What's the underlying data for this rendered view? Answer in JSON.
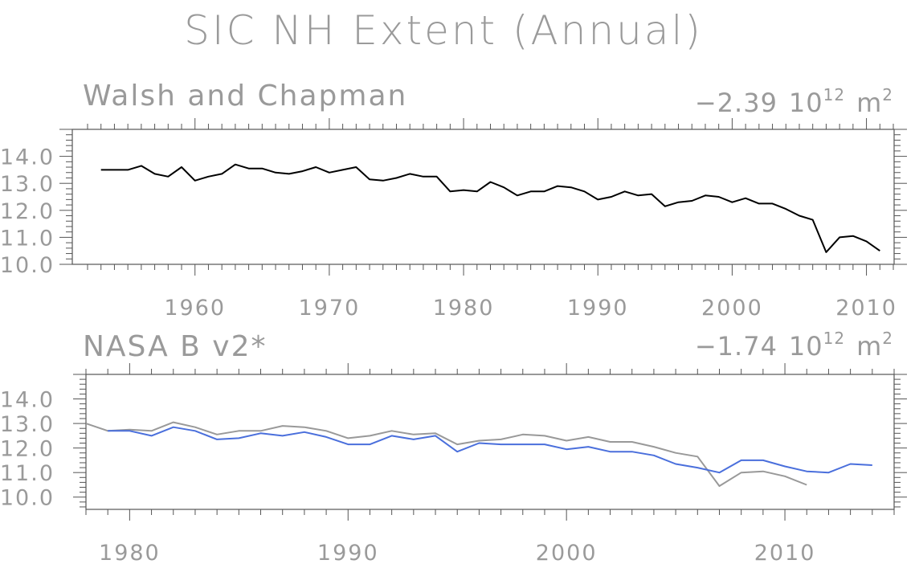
{
  "title": "SIC NH Extent (Annual)",
  "chart_data": [
    {
      "type": "line",
      "title": "Walsh and Chapman",
      "trend": {
        "value": "−2.39",
        "base": "10",
        "exponent": "12",
        "unit": "m",
        "unit_exponent": "2"
      },
      "xlim": [
        1952,
        2012
      ],
      "ylim": [
        10,
        15
      ],
      "x_ticks": [
        "1960",
        "1970",
        "1980",
        "1990",
        "2000",
        "2010"
      ],
      "y_ticks": [
        "10.0",
        "11.0",
        "12.0",
        "13.0",
        "14.0"
      ],
      "series": [
        {
          "color": "#000000",
          "x": [
            1953,
            1954,
            1955,
            1956,
            1957,
            1958,
            1959,
            1960,
            1961,
            1962,
            1963,
            1964,
            1965,
            1966,
            1967,
            1968,
            1969,
            1970,
            1971,
            1972,
            1973,
            1974,
            1975,
            1976,
            1977,
            1978,
            1979,
            1980,
            1981,
            1982,
            1983,
            1984,
            1985,
            1986,
            1987,
            1988,
            1989,
            1990,
            1991,
            1992,
            1993,
            1994,
            1995,
            1996,
            1997,
            1998,
            1999,
            2000,
            2001,
            2002,
            2003,
            2004,
            2005,
            2006,
            2007,
            2008,
            2009,
            2010,
            2011
          ],
          "y": [
            13.5,
            13.5,
            13.5,
            13.65,
            13.35,
            13.25,
            13.6,
            13.1,
            13.25,
            13.35,
            13.7,
            13.55,
            13.55,
            13.4,
            13.35,
            13.45,
            13.6,
            13.4,
            13.5,
            13.6,
            13.15,
            13.1,
            13.2,
            13.35,
            13.25,
            13.25,
            12.7,
            12.75,
            12.7,
            13.05,
            12.85,
            12.55,
            12.7,
            12.7,
            12.9,
            12.85,
            12.7,
            12.4,
            12.5,
            12.7,
            12.55,
            12.6,
            12.15,
            12.3,
            12.35,
            12.55,
            12.5,
            12.3,
            12.45,
            12.25,
            12.25,
            12.05,
            11.8,
            11.65,
            10.45,
            11.0,
            11.05,
            10.85,
            10.5
          ]
        }
      ]
    },
    {
      "type": "line",
      "title": "NASA B v2*",
      "trend": {
        "value": "−1.74",
        "base": "10",
        "exponent": "12",
        "unit": "m",
        "unit_exponent": "2"
      },
      "xlim": [
        1978,
        2015
      ],
      "ylim": [
        9.5,
        15
      ],
      "x_ticks": [
        "1980",
        "1990",
        "2000",
        "2010"
      ],
      "y_ticks": [
        "10.0",
        "11.0",
        "12.0",
        "13.0",
        "14.0"
      ],
      "series": [
        {
          "color": "#4a6fdc",
          "x": [
            1979,
            1980,
            1981,
            1982,
            1983,
            1984,
            1985,
            1986,
            1987,
            1988,
            1989,
            1990,
            1991,
            1992,
            1993,
            1994,
            1995,
            1996,
            1997,
            1998,
            1999,
            2000,
            2001,
            2002,
            2003,
            2004,
            2005,
            2006,
            2007,
            2008,
            2009,
            2010,
            2011,
            2012,
            2013,
            2014
          ],
          "y": [
            12.7,
            12.7,
            12.5,
            12.85,
            12.7,
            12.35,
            12.4,
            12.6,
            12.5,
            12.65,
            12.45,
            12.15,
            12.15,
            12.5,
            12.35,
            12.5,
            11.85,
            12.2,
            12.15,
            12.15,
            12.15,
            11.95,
            12.05,
            11.85,
            11.85,
            11.7,
            11.35,
            11.2,
            11.0,
            11.5,
            11.5,
            11.25,
            11.05,
            11.0,
            11.35,
            11.3
          ]
        },
        {
          "color": "#999999",
          "x": [
            1978,
            1979,
            1980,
            1981,
            1982,
            1983,
            1984,
            1985,
            1986,
            1987,
            1988,
            1989,
            1990,
            1991,
            1992,
            1993,
            1994,
            1995,
            1996,
            1997,
            1998,
            1999,
            2000,
            2001,
            2002,
            2003,
            2004,
            2005,
            2006,
            2007,
            2008,
            2009,
            2010,
            2011
          ],
          "y": [
            13.0,
            12.7,
            12.75,
            12.7,
            13.05,
            12.85,
            12.55,
            12.7,
            12.7,
            12.9,
            12.85,
            12.7,
            12.4,
            12.5,
            12.7,
            12.55,
            12.6,
            12.15,
            12.3,
            12.35,
            12.55,
            12.5,
            12.3,
            12.45,
            12.25,
            12.25,
            12.05,
            11.8,
            11.65,
            10.45,
            11.0,
            11.05,
            10.85,
            10.5
          ]
        }
      ]
    }
  ]
}
